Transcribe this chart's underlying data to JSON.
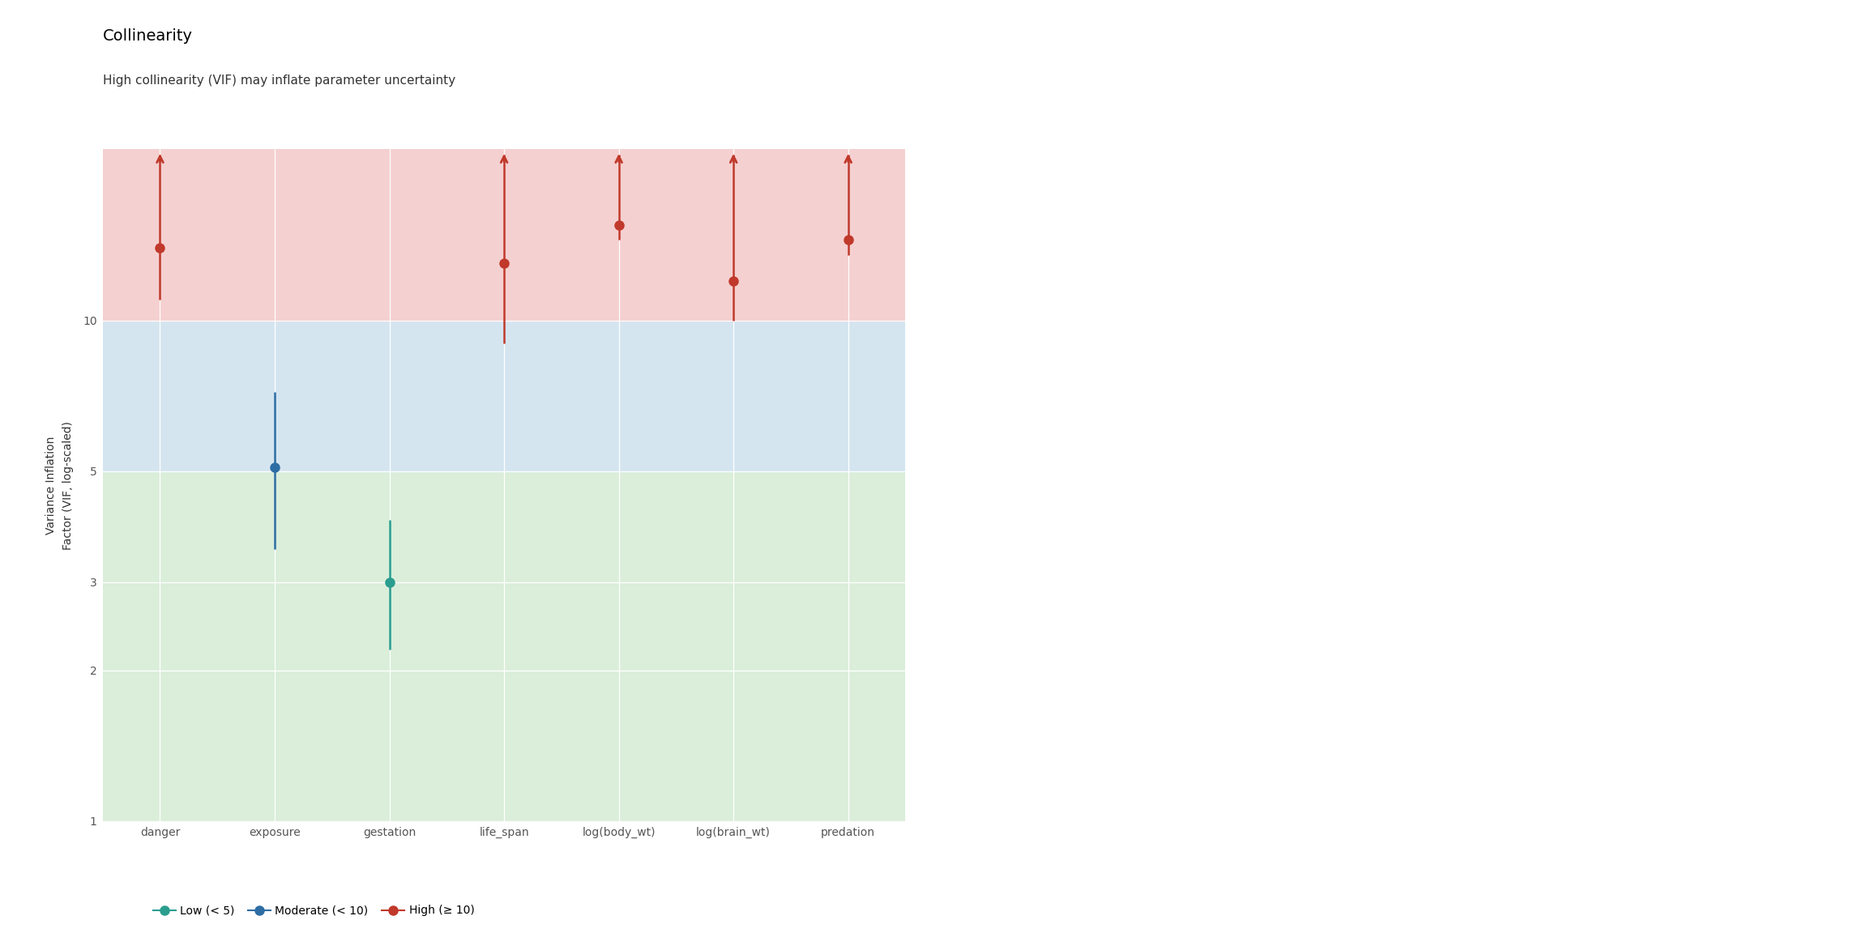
{
  "title": "Collinearity",
  "subtitle": "High collinearity (VIF) may inflate parameter uncertainty",
  "ylabel": "Variance Inflation\nFactor (VIF, log-scaled)",
  "categories": [
    "danger",
    "exposure",
    "gestation",
    "life_span",
    "log(body_wt)",
    "log(brain_wt)",
    "predation"
  ],
  "vif_values": [
    14.0,
    5.1,
    3.0,
    13.0,
    15.5,
    12.0,
    14.5
  ],
  "vif_low": [
    11.0,
    3.5,
    2.2,
    9.0,
    14.5,
    10.0,
    13.5
  ],
  "vif_high": [
    22.0,
    7.2,
    4.0,
    22.0,
    22.0,
    22.0,
    22.0
  ],
  "clipped": [
    true,
    false,
    false,
    true,
    true,
    true,
    true
  ],
  "colors": [
    "#c0392b",
    "#2e6da4",
    "#2a9d8f",
    "#c0392b",
    "#c0392b",
    "#c0392b",
    "#c0392b"
  ],
  "bg_green": "#daeeda",
  "bg_blue": "#d4e5f0",
  "bg_red": "#f5d0d0",
  "ymin": 1.0,
  "ymax": 22.0,
  "low_thresh": 5.0,
  "high_thresh": 10.0,
  "ytick_values": [
    1,
    2,
    3,
    5,
    10
  ],
  "legend_low_color": "#2a9d8f",
  "legend_mod_color": "#2e6da4",
  "legend_high_color": "#c0392b",
  "title_fontsize": 14,
  "subtitle_fontsize": 11,
  "ylabel_fontsize": 10,
  "tick_fontsize": 10,
  "legend_fontsize": 10
}
